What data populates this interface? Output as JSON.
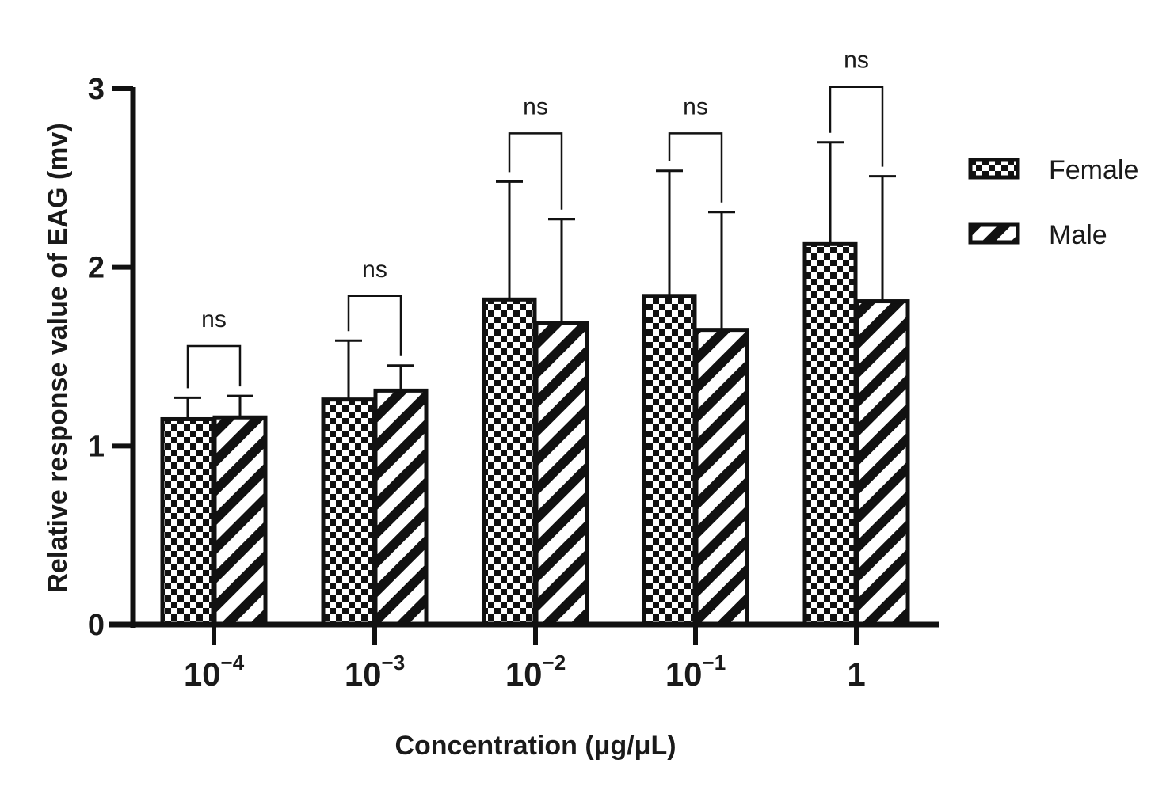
{
  "chart_data": {
    "type": "bar",
    "ylabel": "Relative response value of EAG (mv)",
    "xlabel": "Concentration (μg/μL)",
    "ylim": [
      0,
      3
    ],
    "yticks": [
      "0",
      "1",
      "2",
      "3"
    ],
    "categories": [
      {
        "base": "10",
        "exp": "−4"
      },
      {
        "base": "10",
        "exp": "−3"
      },
      {
        "base": "10",
        "exp": "−2"
      },
      {
        "base": "10",
        "exp": "−1"
      },
      {
        "base": "1",
        "exp": ""
      }
    ],
    "series": [
      {
        "name": "Female",
        "pattern": "checker",
        "values": [
          1.15,
          1.26,
          1.82,
          1.84,
          2.13
        ],
        "errors": [
          0.12,
          0.33,
          0.66,
          0.7,
          0.57
        ]
      },
      {
        "name": "Male",
        "pattern": "stripes",
        "values": [
          1.16,
          1.31,
          1.69,
          1.65,
          1.81
        ],
        "errors": [
          0.12,
          0.14,
          0.58,
          0.66,
          0.7
        ]
      }
    ],
    "significance": [
      {
        "label": "ns",
        "level": 1.56
      },
      {
        "label": "ns",
        "level": 1.84
      },
      {
        "label": "ns",
        "level": 2.75
      },
      {
        "label": "ns",
        "level": 2.75
      },
      {
        "label": "ns",
        "level": 3.01
      }
    ],
    "legend_position": "right"
  }
}
